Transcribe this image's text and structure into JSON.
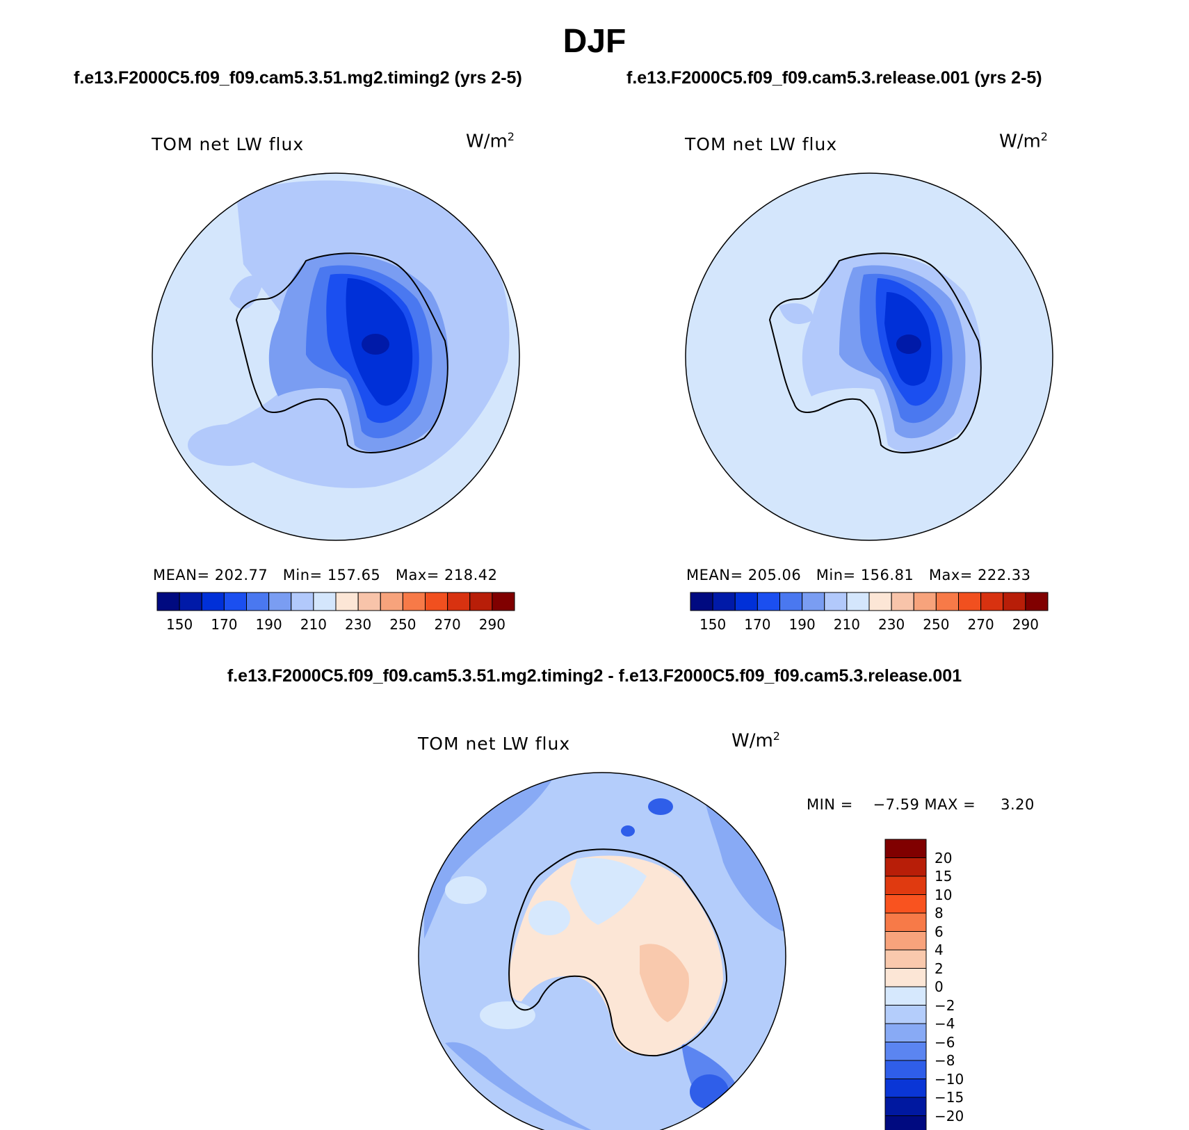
{
  "chart_data": {
    "type": "polar-contour-maps",
    "season": "DJF",
    "panels": [
      {
        "title": "f.e13.F2000C5.f09_f09.cam5.3.51.mg2.timing2 (yrs 2-5)",
        "variable": "TOM net LW flux",
        "units_base": "W/m",
        "units_exp": "2",
        "stats": {
          "mean_label": "MEAN=",
          "mean": "202.77",
          "min_label": "Min=",
          "min": "157.65",
          "max_label": "Max=",
          "max": "218.42"
        },
        "colorbar_ticks": [
          "150",
          "170",
          "190",
          "210",
          "230",
          "250",
          "270",
          "290"
        ]
      },
      {
        "title": "f.e13.F2000C5.f09_f09.cam5.3.release.001 (yrs 2-5)",
        "variable": "TOM net LW flux",
        "units_base": "W/m",
        "units_exp": "2",
        "stats": {
          "mean_label": "MEAN=",
          "mean": "205.06",
          "min_label": "Min=",
          "min": "156.81",
          "max_label": "Max=",
          "max": "222.33"
        },
        "colorbar_ticks": [
          "150",
          "170",
          "190",
          "210",
          "230",
          "250",
          "270",
          "290"
        ]
      }
    ],
    "difference": {
      "title": "f.e13.F2000C5.f09_f09.cam5.3.51.mg2.timing2 - f.e13.F2000C5.f09_f09.cam5.3.release.001",
      "variable": "TOM net LW flux",
      "units_base": "W/m",
      "units_exp": "2",
      "min_label": "MIN =",
      "min": "−7.59",
      "max_label": "MAX =",
      "max": "3.20",
      "colorbar_ticks": [
        "20",
        "15",
        "10",
        "8",
        "6",
        "4",
        "2",
        "0",
        "−2",
        "−4",
        "−6",
        "−8",
        "−10",
        "−15",
        "−20"
      ]
    },
    "abs_colors": [
      "#000a80",
      "#001aa8",
      "#0030d8",
      "#1b4ff0",
      "#4a78f0",
      "#7a9df2",
      "#b2c9fb",
      "#d4e6fc",
      "#fce6d6",
      "#f8c4aa",
      "#f7a37c",
      "#f77a48",
      "#f1501f",
      "#d83210",
      "#b81e08",
      "#800000"
    ],
    "diff_colors": [
      "#800000",
      "#b81e08",
      "#e03a10",
      "#f9531f",
      "#f77a48",
      "#f8a37c",
      "#f9c9ad",
      "#fce6d6",
      "#d6e8fd",
      "#b4cdfb",
      "#88aaf5",
      "#5b85f1",
      "#2f5ee9",
      "#0a36d6",
      "#0018a0",
      "#000a80"
    ]
  }
}
